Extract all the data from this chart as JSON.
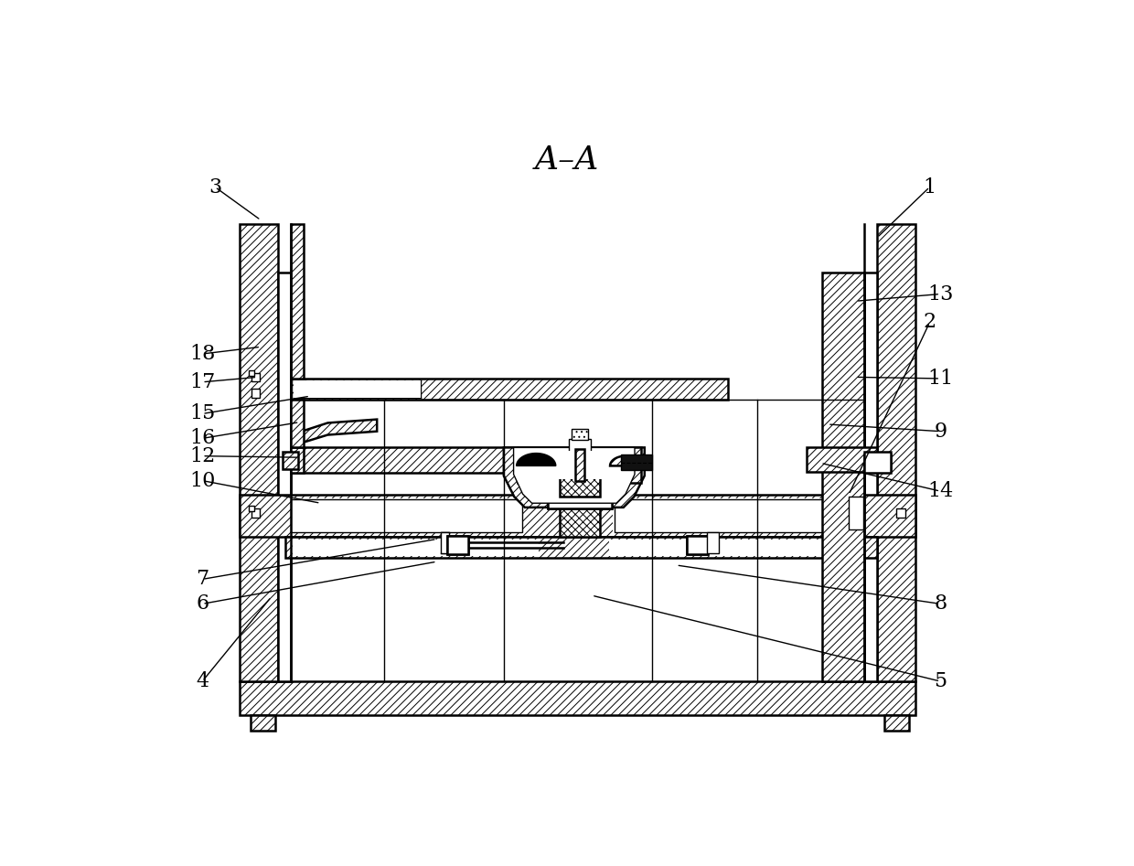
{
  "title": "A–A",
  "bg_color": "#ffffff",
  "line_color": "#000000",
  "figsize": [
    12.4,
    9.47
  ],
  "dpi": 100,
  "annotations": {
    "1": {
      "lpos": [
        1115,
        118
      ],
      "tpos": [
        1040,
        190
      ]
    },
    "2": {
      "lpos": [
        1115,
        310
      ],
      "tpos": [
        1000,
        555
      ]
    },
    "3": {
      "lpos": [
        100,
        118
      ],
      "tpos": [
        165,
        165
      ]
    },
    "4": {
      "lpos": [
        82,
        820
      ],
      "tpos": [
        180,
        700
      ]
    },
    "5": {
      "lpos": [
        1130,
        820
      ],
      "tpos": [
        635,
        698
      ]
    },
    "6": {
      "lpos": [
        82,
        710
      ],
      "tpos": [
        415,
        650
      ]
    },
    "7": {
      "lpos": [
        82,
        675
      ],
      "tpos": [
        415,
        618
      ]
    },
    "8": {
      "lpos": [
        1130,
        710
      ],
      "tpos": [
        755,
        655
      ]
    },
    "9": {
      "lpos": [
        1130,
        465
      ],
      "tpos": [
        970,
        455
      ]
    },
    "10": {
      "lpos": [
        82,
        535
      ],
      "tpos": [
        250,
        567
      ]
    },
    "11": {
      "lpos": [
        1130,
        390
      ],
      "tpos": [
        1010,
        388
      ]
    },
    "12": {
      "lpos": [
        82,
        500
      ],
      "tpos": [
        220,
        502
      ]
    },
    "13": {
      "lpos": [
        1130,
        270
      ],
      "tpos": [
        1010,
        280
      ]
    },
    "14": {
      "lpos": [
        1130,
        550
      ],
      "tpos": [
        960,
        510
      ]
    },
    "15": {
      "lpos": [
        82,
        440
      ],
      "tpos": [
        235,
        415
      ]
    },
    "16": {
      "lpos": [
        82,
        475
      ],
      "tpos": [
        220,
        452
      ]
    },
    "17": {
      "lpos": [
        82,
        395
      ],
      "tpos": [
        160,
        388
      ]
    },
    "18": {
      "lpos": [
        82,
        355
      ],
      "tpos": [
        165,
        345
      ]
    }
  }
}
